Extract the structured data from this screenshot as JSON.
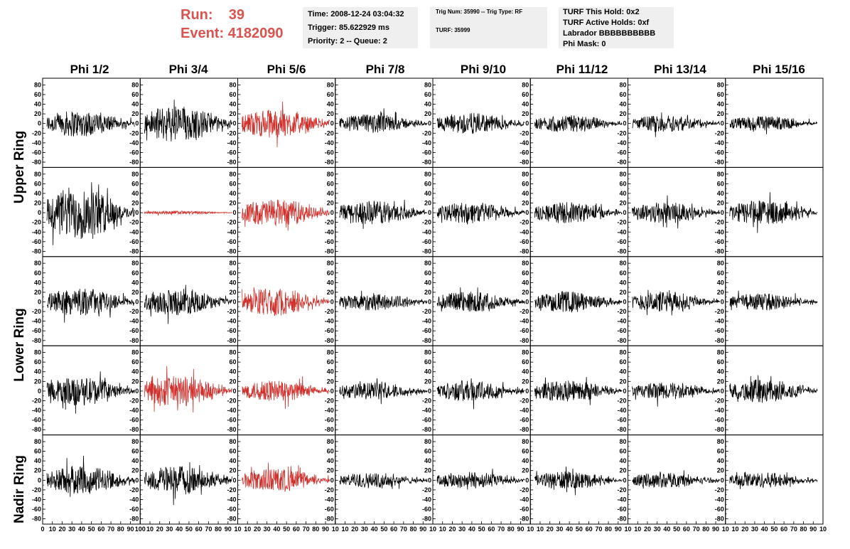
{
  "run_info": {
    "run_label": "Run:",
    "run_value": "39",
    "event_label": "Event:",
    "event_value": "4182090"
  },
  "time_box": {
    "time": "Time: 2008-12-24 03:04:32",
    "trigger": "Trigger: 85.622929 ms",
    "priority": "Priority: 2 -- Queue: 2"
  },
  "trig_box": {
    "trig": "Trig Num: 35990 -- Trig Type: RF",
    "turf": "TURF: 35999"
  },
  "turf_box": {
    "hold": "TURF This Hold: 0x2",
    "active": "TURF Active Holds: 0xf",
    "labrador": "Labrador BBBBBBBBBB",
    "mask": "Phi Mask: 0"
  },
  "phi_headers": [
    "Phi 1/2",
    "Phi 3/4",
    "Phi 5/6",
    "Phi 7/8",
    "Phi 9/10",
    "Phi 11/12",
    "Phi 13/14",
    "Phi 15/16"
  ],
  "ring_labels": {
    "upper": "Upper Ring",
    "lower": "Lower Ring",
    "nadir": "Nadir Ring"
  },
  "colors": {
    "trace_normal": "#000000",
    "trace_triggered": "#d0302b",
    "info_box_bg": "#efefef",
    "run_text": "#d9534f"
  },
  "chart_data": {
    "type": "line",
    "rows": 5,
    "columns": 8,
    "ylim": [
      -85,
      85
    ],
    "xlim": [
      0,
      100
    ],
    "y_ticks": [
      "80",
      "60",
      "40",
      "20",
      "0",
      "-20",
      "-40",
      "-60",
      "-80"
    ],
    "x_ticks_first": [
      "0",
      "10",
      "20",
      "30",
      "40",
      "50",
      "60",
      "70",
      "80",
      "90",
      "100"
    ],
    "x_ticks_other": [
      "10",
      "20",
      "30",
      "40",
      "50",
      "60",
      "70",
      "80",
      "90",
      "10"
    ],
    "highlighted_panels": [
      [
        0,
        2
      ],
      [
        1,
        1
      ],
      [
        1,
        2
      ],
      [
        2,
        2
      ],
      [
        3,
        1
      ],
      [
        3,
        2
      ],
      [
        4,
        2
      ]
    ],
    "panel_amplitudes": [
      [
        28,
        38,
        30,
        20,
        22,
        18,
        18,
        16
      ],
      [
        55,
        4,
        28,
        26,
        22,
        22,
        22,
        26
      ],
      [
        28,
        28,
        30,
        18,
        22,
        22,
        22,
        18
      ],
      [
        30,
        32,
        22,
        18,
        22,
        22,
        18,
        24
      ],
      [
        30,
        30,
        25,
        16,
        18,
        18,
        16,
        16
      ]
    ]
  }
}
